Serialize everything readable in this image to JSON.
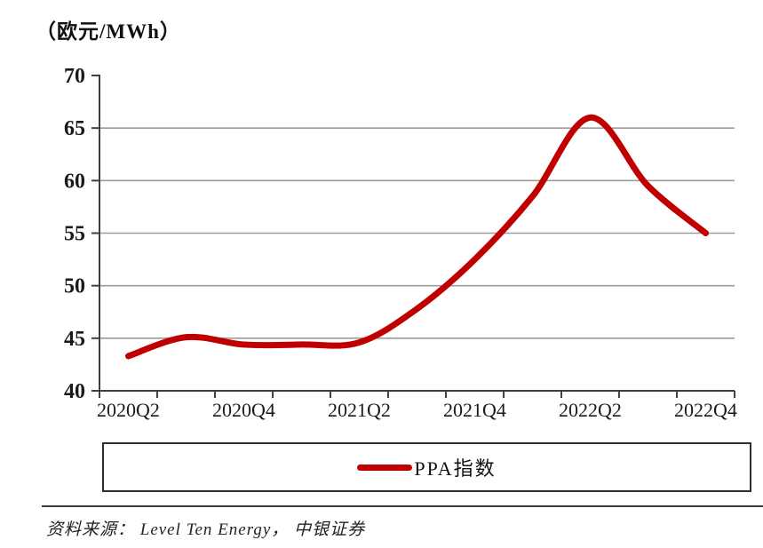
{
  "figure": {
    "unit_label": "（欧元/MWh）",
    "legend": {
      "series_label": "PPA指数"
    },
    "source_text": "资料来源： Level Ten Energy， 中银证券"
  },
  "chart_data": {
    "type": "line",
    "title": "（欧元/MWh）",
    "categories": [
      "2020Q2",
      "2020Q3",
      "2020Q4",
      "2021Q1",
      "2021Q2",
      "2021Q3",
      "2021Q4",
      "2022Q1",
      "2022Q2",
      "2022Q3",
      "2022Q4"
    ],
    "x_tick_labels_shown": [
      "2020Q2",
      "2020Q4",
      "2021Q2",
      "2021Q4",
      "2022Q2",
      "2022Q4"
    ],
    "series": [
      {
        "name": "PPA指数",
        "values": [
          43.3,
          45.1,
          44.4,
          44.4,
          44.6,
          47.8,
          52.5,
          58.5,
          66.0,
          59.5,
          55.0
        ]
      }
    ],
    "ylim": [
      40,
      70
    ],
    "yticks": [
      40,
      45,
      50,
      55,
      60,
      65,
      70
    ],
    "grid": "horizontal-only, no gridline at 70, no right or top border",
    "legend_position": "bottom, boxed, centered",
    "source": "资料来源： Level Ten Energy， 中银证券"
  },
  "colors": {
    "line": "#C00000",
    "grid": "#9c9c9c",
    "axis": "#3f3f3f",
    "text": "#1a1a1a"
  }
}
